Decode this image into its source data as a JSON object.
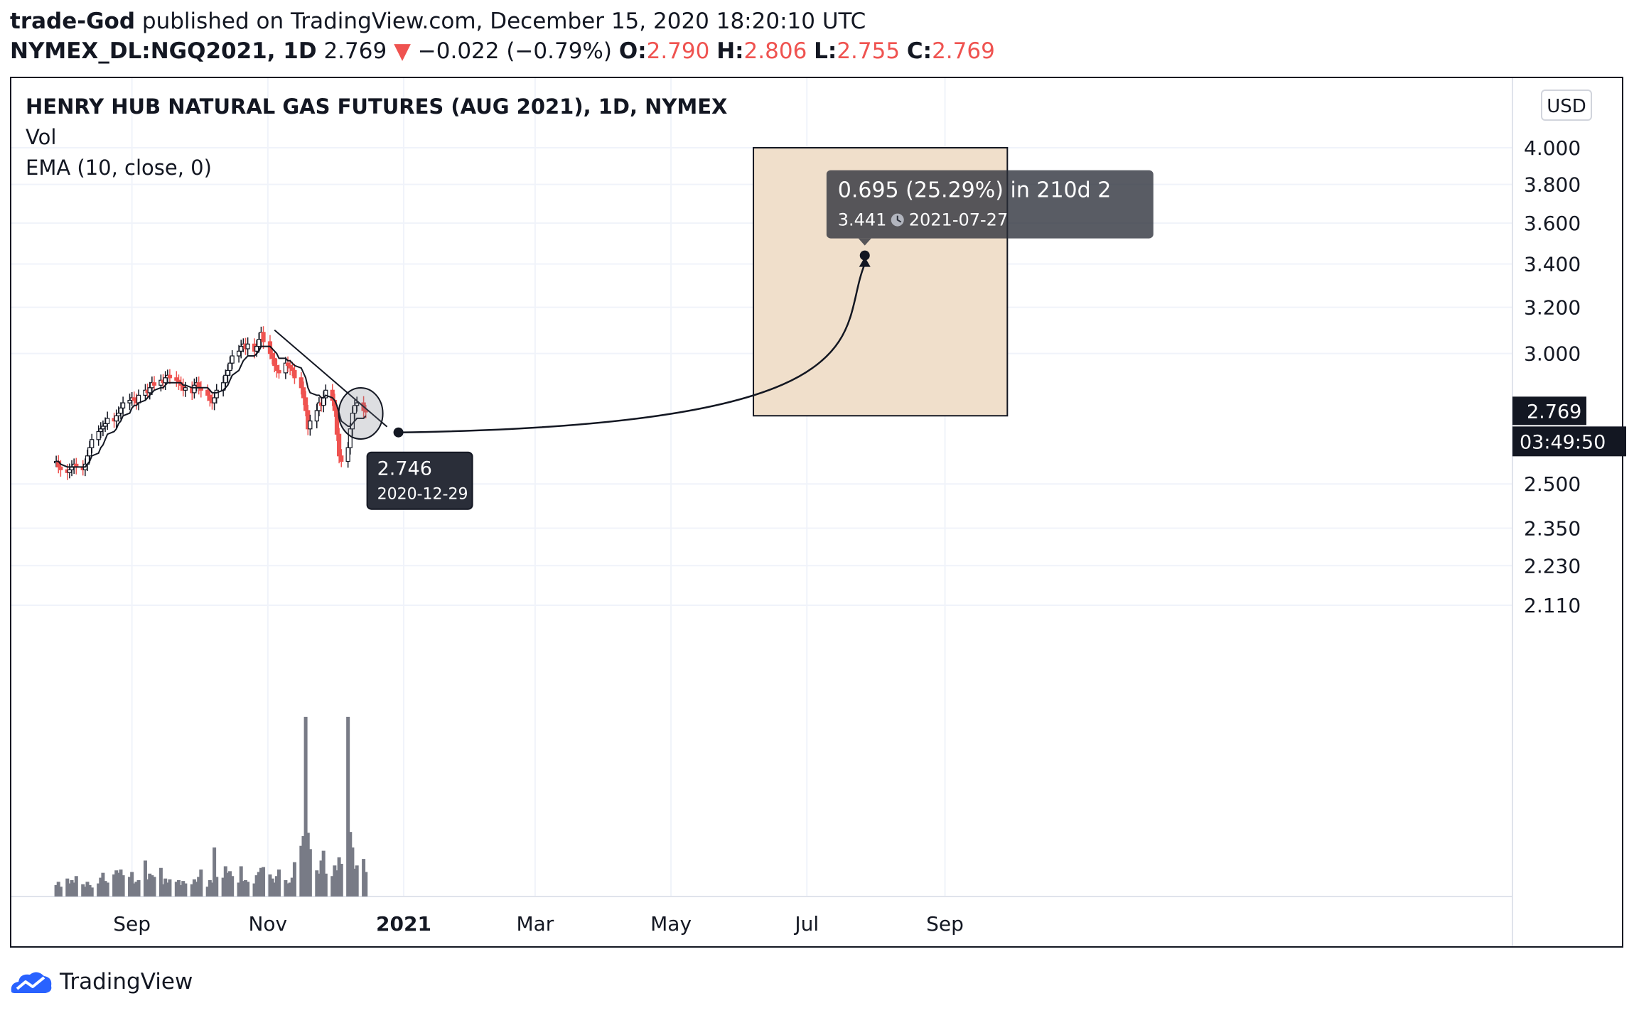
{
  "header": {
    "author": "trade-God",
    "published_text": "published on TradingView.com, December 15, 2020 18:20:10 UTC",
    "symbol": "NYMEX_DL:NGQ2021, 1D",
    "last": "2.769",
    "change_arrow": "▼",
    "change": "−0.022 (−0.79%)",
    "o_label": "O:",
    "o_value": "2.790",
    "h_label": "H:",
    "h_value": "2.806",
    "l_label": "L:",
    "l_value": "2.755",
    "c_label": "C:",
    "c_value": "2.769"
  },
  "legend": {
    "title": "HENRY HUB NATURAL GAS FUTURES (AUG 2021), 1D, NYMEX",
    "vol": "Vol",
    "ema": "EMA (10, close, 0)"
  },
  "currency_button": "USD",
  "price_axis": {
    "ticks": [
      "4.000",
      "3.800",
      "3.600",
      "3.400",
      "3.200",
      "3.000",
      "2.500",
      "2.350",
      "2.230",
      "2.110"
    ],
    "current_price": "2.769",
    "countdown": "03:49:50"
  },
  "time_axis": {
    "labels": [
      "Sep",
      "Nov",
      "2021",
      "Mar",
      "May",
      "Jul",
      "Sep"
    ]
  },
  "annotations": {
    "origin_price": "2.746",
    "origin_date": "2020-12-29",
    "target_change": "0.695 (25.29%) in 210d 2",
    "target_price": "3.441",
    "target_clock_icon": "clock-icon",
    "target_date": "2021-07-27"
  },
  "colors": {
    "up": "#131722",
    "down": "#ef5350",
    "volume": "#787b86",
    "target_zone": "#f0dfcb",
    "tooltip_bg": "#2a2e39",
    "accent_text": "#ef5350"
  },
  "footer": {
    "brand": "TradingView",
    "logo_icon": "tradingview-logo-icon"
  },
  "chart_data": {
    "type": "candlestick",
    "title": "HENRY HUB NATURAL GAS FUTURES (AUG 2021), 1D, NYMEX",
    "y_scale": "log",
    "ylim": [
      2.09,
      4.3
    ],
    "x_range": [
      "2020-07-29",
      "2021-10-20"
    ],
    "current_price": 2.769,
    "closes": [
      2.58,
      2.56,
      2.55,
      2.54,
      2.55,
      2.56,
      2.57,
      2.56,
      2.55,
      2.57,
      2.6,
      2.63,
      2.66,
      2.69,
      2.7,
      2.71,
      2.72,
      2.74,
      2.73,
      2.75,
      2.76,
      2.78,
      2.8,
      2.81,
      2.82,
      2.81,
      2.8,
      2.83,
      2.85,
      2.84,
      2.86,
      2.88,
      2.87,
      2.89,
      2.88,
      2.9,
      2.91,
      2.9,
      2.89,
      2.88,
      2.87,
      2.85,
      2.86,
      2.84,
      2.87,
      2.88,
      2.86,
      2.85,
      2.83,
      2.81,
      2.8,
      2.82,
      2.85,
      2.88,
      2.91,
      2.93,
      2.96,
      2.99,
      3.01,
      3.03,
      3.04,
      3.02,
      3.04,
      3.01,
      3.03,
      3.06,
      3.09,
      3.05,
      3.0,
      2.98,
      2.95,
      2.93,
      2.92,
      2.96,
      2.95,
      2.94,
      2.93,
      2.9,
      2.86,
      2.82,
      2.77,
      2.7,
      2.73,
      2.77,
      2.8,
      2.79,
      2.82,
      2.85,
      2.81,
      2.77,
      2.68,
      2.6,
      2.58,
      2.63,
      2.7,
      2.76,
      2.79,
      2.8,
      2.77,
      2.769
    ],
    "ema10": [
      2.58,
      2.58,
      2.57,
      2.56,
      2.56,
      2.56,
      2.56,
      2.56,
      2.56,
      2.56,
      2.57,
      2.58,
      2.6,
      2.61,
      2.63,
      2.64,
      2.66,
      2.68,
      2.69,
      2.7,
      2.72,
      2.73,
      2.75,
      2.76,
      2.78,
      2.79,
      2.79,
      2.8,
      2.81,
      2.82,
      2.83,
      2.84,
      2.85,
      2.86,
      2.86,
      2.87,
      2.88,
      2.88,
      2.88,
      2.88,
      2.88,
      2.87,
      2.87,
      2.86,
      2.86,
      2.86,
      2.86,
      2.86,
      2.86,
      2.85,
      2.84,
      2.84,
      2.84,
      2.85,
      2.86,
      2.87,
      2.89,
      2.91,
      2.93,
      2.95,
      2.97,
      2.98,
      2.99,
      2.99,
      3.0,
      3.01,
      3.03,
      3.03,
      3.03,
      3.02,
      3.01,
      3.0,
      2.98,
      2.98,
      2.97,
      2.97,
      2.96,
      2.95,
      2.94,
      2.92,
      2.9,
      2.86,
      2.84,
      2.83,
      2.83,
      2.82,
      2.82,
      2.83,
      2.82,
      2.81,
      2.79,
      2.76,
      2.73,
      2.71,
      2.71,
      2.72,
      2.73,
      2.74,
      2.74,
      2.75
    ],
    "volume": [
      14,
      18,
      12,
      22,
      16,
      20,
      17,
      25,
      15,
      12,
      18,
      14,
      11,
      16,
      23,
      29,
      19,
      17,
      27,
      32,
      29,
      33,
      26,
      24,
      30,
      16,
      18,
      20,
      44,
      21,
      28,
      26,
      24,
      35,
      15,
      22,
      17,
      21,
      18,
      20,
      14,
      19,
      16,
      15,
      21,
      18,
      24,
      33,
      12,
      20,
      17,
      60,
      24,
      23,
      37,
      29,
      31,
      25,
      17,
      37,
      19,
      20,
      18,
      16,
      26,
      30,
      35,
      36,
      27,
      22,
      17,
      25,
      33,
      20,
      16,
      17,
      23,
      42,
      62,
      74,
      220,
      78,
      58,
      32,
      28,
      44,
      56,
      28,
      25,
      38,
      32,
      48,
      40,
      220,
      79,
      60,
      34,
      38,
      46,
      30
    ],
    "trendline": {
      "from": [
        "2020-11-04",
        3.1
      ],
      "to": [
        "2020-12-29",
        2.746
      ]
    },
    "projection": {
      "from": [
        "2020-12-29",
        2.746
      ],
      "to": [
        "2021-07-27",
        3.441
      ]
    },
    "target_zone": {
      "x0": "2021-06-07",
      "x1": "2021-09-29",
      "y0": 2.75,
      "y1": 4.0
    }
  }
}
